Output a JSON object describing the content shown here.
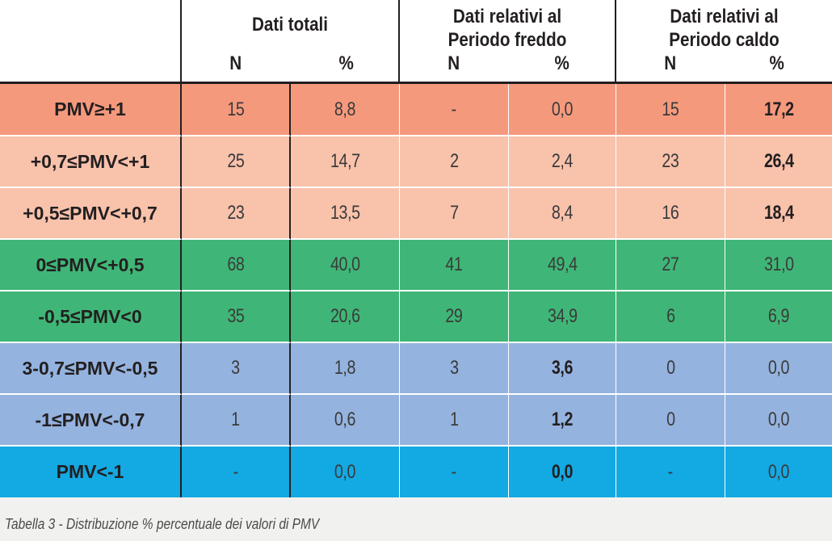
{
  "header": {
    "group1_title": "Dati totali",
    "group2_title_line1": "Dati relativi al",
    "group2_title_line2": "Periodo freddo",
    "group3_title_line1": "Dati relativi al",
    "group3_title_line2": "Periodo caldo",
    "col_n": "N",
    "col_pct": "%"
  },
  "rows": [
    {
      "label": "PMV≥+1",
      "tot_n": "15",
      "tot_pct": "8,8",
      "fr_n": "-",
      "fr_pct": "0,0",
      "ca_n": "15",
      "ca_pct": "17,2",
      "color": "#f5997d"
    },
    {
      "label": "+0,7≤PMV<+1",
      "tot_n": "25",
      "tot_pct": "14,7",
      "fr_n": "2",
      "fr_pct": "2,4",
      "ca_n": "23",
      "ca_pct": "26,4",
      "color": "#f9c2ab"
    },
    {
      "label": "+0,5≤PMV<+0,7",
      "tot_n": "23",
      "tot_pct": "13,5",
      "fr_n": "7",
      "fr_pct": "8,4",
      "ca_n": "16",
      "ca_pct": "18,4",
      "color": "#f9c2ab"
    },
    {
      "label": "0≤PMV<+0,5",
      "tot_n": "68",
      "tot_pct": "40,0",
      "fr_n": "41",
      "fr_pct": "49,4",
      "ca_n": "27",
      "ca_pct": "31,0",
      "color": "#3fb677"
    },
    {
      "label": "-0,5≤PMV<0",
      "tot_n": "35",
      "tot_pct": "20,6",
      "fr_n": "29",
      "fr_pct": "34,9",
      "ca_n": "6",
      "ca_pct": "6,9",
      "color": "#3fb677"
    },
    {
      "label": "3-0,7≤PMV<-0,5",
      "tot_n": "3",
      "tot_pct": "1,8",
      "fr_n": "3",
      "fr_pct": "3,6",
      "ca_n": "0",
      "ca_pct": "0,0",
      "color": "#95b3df"
    },
    {
      "label": "-1≤PMV<-0,7",
      "tot_n": "1",
      "tot_pct": "0,6",
      "fr_n": "1",
      "fr_pct": "1,2",
      "ca_n": "0",
      "ca_pct": "0,0",
      "color": "#95b3df"
    },
    {
      "label": "PMV<-1",
      "tot_n": "-",
      "tot_pct": "0,0",
      "fr_n": "-",
      "fr_pct": "0,0",
      "ca_n": "-",
      "ca_pct": "0,0",
      "color": "#13a9e3"
    }
  ],
  "caption": "Tabella 3 - Distribuzione % percentuale dei valori di PMV"
}
